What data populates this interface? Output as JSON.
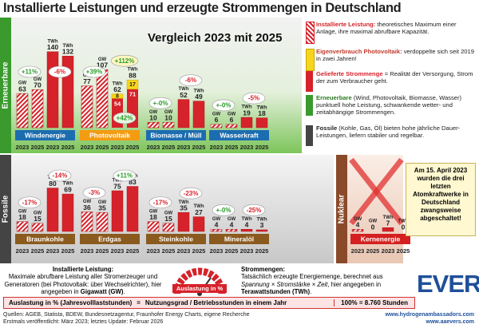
{
  "title": "Installierte Leistungen und erzeugte Strommengen in Deutschland",
  "subtitle": "Vergleich 2023 mit 2025",
  "units": {
    "gw": "GW",
    "twh": "TWh"
  },
  "years": [
    "2023",
    "2025"
  ],
  "sections": [
    {
      "label": "Erneuerbare",
      "groups": [
        {
          "name": "Windenergie",
          "color": "#1c6db0",
          "gw": [
            63,
            70
          ],
          "twh": [
            140,
            132
          ],
          "gw_change": "+11%",
          "twh_change": "-6%"
        },
        {
          "name": "Photovoltaik",
          "color": "#f39c12",
          "gw": [
            77,
            107
          ],
          "twh": [
            54,
            71
          ],
          "self": [
            8,
            17
          ],
          "twh_total": [
            62,
            88
          ],
          "gw_change": "+39%",
          "self_change": "+112%",
          "twh_change": "+42%"
        },
        {
          "name": "Biomasse / Müll",
          "color": "#1c6db0",
          "gw": [
            10,
            10
          ],
          "twh": [
            52,
            49
          ],
          "gw_change": "+-0%",
          "twh_change": "-6%"
        },
        {
          "name": "Wasserkraft",
          "color": "#1c6db0",
          "gw": [
            6,
            6
          ],
          "twh": [
            19,
            18
          ],
          "gw_change": "+-0%",
          "twh_change": "-5%"
        }
      ]
    },
    {
      "label": "Fossile",
      "groups": [
        {
          "name": "Braunkohle",
          "color": "#8b5a1e",
          "gw": [
            18,
            15
          ],
          "twh": [
            80,
            69
          ],
          "gw_change": "-17%",
          "twh_change": "-14%"
        },
        {
          "name": "Erdgas",
          "color": "#8b5a1e",
          "gw": [
            36,
            35
          ],
          "twh": [
            75,
            83
          ],
          "gw_change": "-3%",
          "twh_change": "+11%"
        },
        {
          "name": "Steinkohle",
          "color": "#8b5a1e",
          "gw": [
            18,
            15
          ],
          "twh": [
            35,
            27
          ],
          "gw_change": "-17%",
          "twh_change": "-23%"
        },
        {
          "name": "Mineralöl",
          "color": "#8b5a1e",
          "gw": [
            4,
            4
          ],
          "twh": [
            4,
            3
          ],
          "gw_change": "+-0%",
          "twh_change": "-25%"
        }
      ]
    },
    {
      "label": "Nuklear",
      "groups": [
        {
          "name": "Kernenergie",
          "color": "#d42020",
          "gw": [
            4,
            0
          ],
          "twh": [
            7,
            0
          ]
        }
      ]
    }
  ],
  "nuclear_note": "Am 15. April 2023 wurden die drei letzten Atomkraftwerke in Deutschland zwangsweise abgeschaltet!",
  "legend": [
    {
      "term": "Installierte Leistung:",
      "text": "theoretisches Maximum einer Anlage, ihre maximal abrufbare Kapazität."
    },
    {
      "term": "Eigenverbrauch Photovoltaik:",
      "text": "verdoppelte sich seit 2019 in zwei Jahren!"
    },
    {
      "term": "Gelieferte Strommenge",
      "text": "= Realität der Versorgung, Strom der zum Verbraucher geht."
    },
    {
      "term": "Erneuerbare",
      "text": "(Wind, Photovoltaik, Biomasse, Wasser) punktuell hohe Leistung, schwankende wetter- und zeitabhängige Strommengen."
    },
    {
      "term": "Fossile",
      "text": "(Kohle, Gas, Öl) bieten hohe jährliche Dauer-Leistungen, liefern stabiler und regelbar."
    }
  ],
  "installed": {
    "term": "Installierte Leistung:",
    "text": [
      "Maximale abrufbare Leistung aller Stromerzeuger und Generatoren (bei Photovoltaik: über Wechselrichter), hier angegeben in ",
      "Gigawatt (GW)",
      "."
    ]
  },
  "gauge_label": "Auslastung in %",
  "energy": {
    "term": "Strommengen:",
    "text": [
      "Tatsächlich erzeugte Energiemenge, berechnet aus ",
      "Spannung × Stromstärke × Zeit",
      ", hier angegeben in ",
      "Terawattstunden (TWh)",
      "."
    ]
  },
  "formula": {
    "left": "Auslastung in % (Jahresvolllaststunden)",
    "equals": "=",
    "right": "Nutzungsgrad / Betriebsstunden in einem Jahr",
    "hours": "100% = 8.760 Stunden"
  },
  "footer": {
    "sources": "Quellen: AGEB, Statista, BDEW, Bundesnetzagentur, Fraunhofer Energy Charts, eigene Recherche",
    "published": "Erstmals veröffentlicht: März 2023; letztes Update: Februar 2026",
    "url1": "www.hydrogenambassadors.com",
    "url2": "www.aaevers.com",
    "logo": "EVERS"
  }
}
